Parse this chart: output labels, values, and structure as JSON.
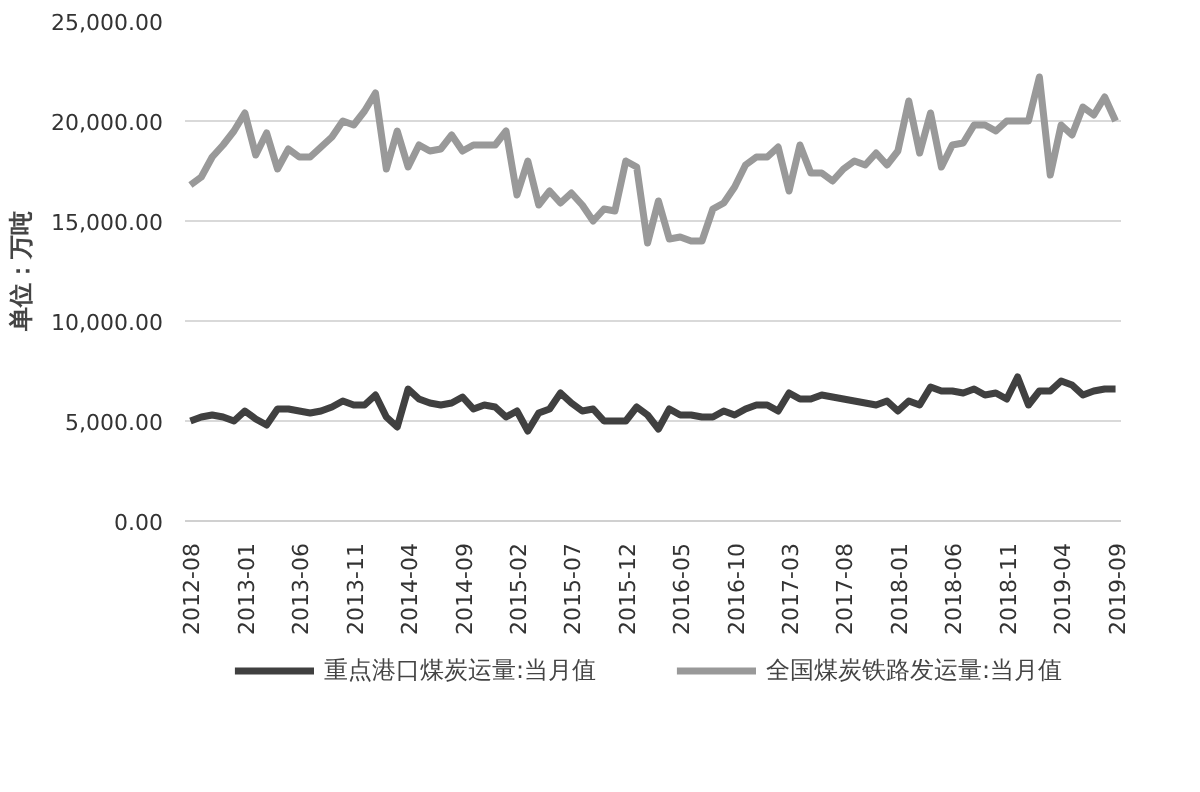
{
  "chart_data": {
    "type": "line",
    "ylabel": "单位：万吨",
    "categories": [
      "2012-08",
      null,
      null,
      null,
      null,
      "2013-01",
      null,
      null,
      null,
      null,
      "2013-06",
      null,
      null,
      null,
      null,
      "2013-11",
      null,
      null,
      null,
      null,
      "2014-04",
      null,
      null,
      null,
      null,
      "2014-09",
      null,
      null,
      null,
      null,
      "2015-02",
      null,
      null,
      null,
      null,
      "2015-07",
      null,
      null,
      null,
      null,
      "2015-12",
      null,
      null,
      null,
      null,
      "2016-05",
      null,
      null,
      null,
      null,
      "2016-10",
      null,
      null,
      null,
      null,
      "2017-03",
      null,
      null,
      null,
      null,
      "2017-08",
      null,
      null,
      null,
      null,
      "2018-01",
      null,
      null,
      null,
      null,
      "2018-06",
      null,
      null,
      null,
      null,
      "2018-11",
      null,
      null,
      null,
      null,
      "2019-04",
      null,
      null,
      null,
      null,
      "2019-09"
    ],
    "series": [
      {
        "name": "重点港口煤炭运量:当月值",
        "color": "#404040",
        "values": [
          5000,
          5200,
          5300,
          5200,
          5000,
          5500,
          5100,
          4800,
          5600,
          5600,
          5500,
          5400,
          5500,
          5700,
          6000,
          5800,
          5800,
          6300,
          5200,
          4700,
          6600,
          6100,
          5900,
          5800,
          5900,
          6200,
          5600,
          5800,
          5700,
          5200,
          5500,
          4500,
          5400,
          5600,
          6400,
          5900,
          5500,
          5600,
          5000,
          5000,
          5000,
          5700,
          5300,
          4600,
          5600,
          5300,
          5300,
          5200,
          5200,
          5500,
          5300,
          5600,
          5800,
          5800,
          5500,
          6400,
          6100,
          6100,
          6300,
          6200,
          6100,
          6000,
          5900,
          5800,
          6000,
          5500,
          6000,
          5800,
          6700,
          6500,
          6500,
          6400,
          6600,
          6300,
          6400,
          6100,
          7200,
          5800,
          6500,
          6500,
          7000,
          6800,
          6300,
          6500,
          6600,
          6600
        ]
      },
      {
        "name": "全国煤炭铁路发运量:当月值",
        "color": "#999999",
        "values": [
          16800,
          17200,
          18200,
          18800,
          19500,
          20400,
          18300,
          19400,
          17600,
          18600,
          18200,
          18200,
          18700,
          19200,
          20000,
          19800,
          20500,
          21400,
          17600,
          19500,
          17700,
          18800,
          18500,
          18600,
          19300,
          18500,
          18800,
          18800,
          18800,
          19500,
          16300,
          18000,
          15800,
          16500,
          15900,
          16400,
          15800,
          15000,
          15600,
          15500,
          18000,
          17700,
          13900,
          16000,
          14100,
          14200,
          14000,
          14000,
          15600,
          15900,
          16700,
          17800,
          18200,
          18200,
          18700,
          16500,
          18800,
          17400,
          17400,
          17000,
          17600,
          18000,
          17800,
          18400,
          17800,
          18500,
          21000,
          18400,
          20400,
          17700,
          18800,
          18900,
          19800,
          19800,
          19500,
          20000,
          20000,
          20000,
          22200,
          17300,
          19800,
          19300,
          20700,
          20300,
          21200,
          20000
        ]
      }
    ],
    "ylim": [
      0,
      25000
    ],
    "yticks": [
      {
        "value": 0,
        "label": "0.00"
      },
      {
        "value": 5000,
        "label": "5,000.00"
      },
      {
        "value": 10000,
        "label": "10,000.00"
      },
      {
        "value": 15000,
        "label": "15,000.00"
      },
      {
        "value": 20000,
        "label": "20,000.00"
      },
      {
        "value": 25000,
        "label": "25,000.00"
      }
    ],
    "grid": "y",
    "legend": "bottom",
    "marker": "none",
    "line_style": "solid"
  }
}
